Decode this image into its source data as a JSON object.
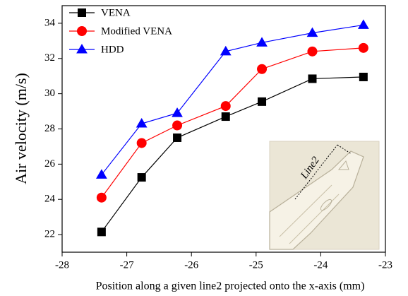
{
  "chart_data": {
    "type": "line",
    "x_label": "Position along a given line2 projected onto the x-axis (mm)",
    "y_label": "Air velocity (m/s)",
    "x": [
      -27.39,
      -26.77,
      -26.22,
      -25.47,
      -24.91,
      -24.13,
      -23.34
    ],
    "series": [
      {
        "name": "VENA",
        "color": "#000000",
        "marker": "square",
        "values": [
          22.15,
          25.25,
          27.5,
          28.7,
          29.55,
          30.85,
          30.95
        ]
      },
      {
        "name": "Modified VENA",
        "color": "#ff0000",
        "marker": "circle",
        "values": [
          24.1,
          27.2,
          28.2,
          29.3,
          31.4,
          32.4,
          32.6
        ]
      },
      {
        "name": "HDD",
        "color": "#0000ff",
        "marker": "triangle",
        "values": [
          25.4,
          28.3,
          28.9,
          32.4,
          32.9,
          33.45,
          33.9
        ]
      }
    ],
    "xlim": [
      -28,
      -23
    ],
    "xticks": [
      -28,
      -27,
      -26,
      -25,
      -24,
      -23
    ],
    "ylim": [
      21,
      35
    ],
    "yticks": [
      22,
      24,
      26,
      28,
      30,
      32,
      34
    ],
    "legend": "upper left",
    "inset_label": "Line2"
  }
}
